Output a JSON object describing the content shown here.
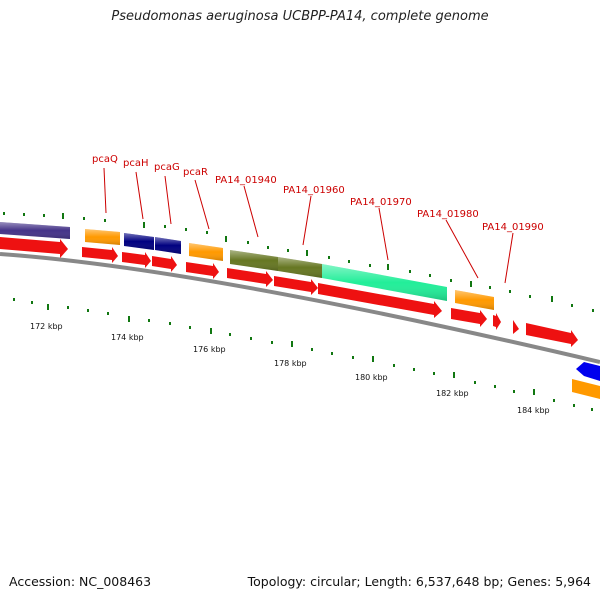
{
  "title": "Pseudomonas aeruginosa UCBPP-PA14, complete genome",
  "footer": {
    "accession": "Accession: NC_008463",
    "summary": "Topology: circular; Length: 6,537,648 bp; Genes: 5,964"
  },
  "colors": {
    "cds": "#ee1111",
    "orange_feature": "#ff9900",
    "navy_feature": "#000080",
    "purple_feature": "#443388",
    "olive_feature": "#667722",
    "mint_feature": "#22ee99",
    "blue_feature": "#0000ee",
    "backbone": "#888888",
    "tick": "#117711",
    "label": "#cc0000"
  },
  "axis_labels": [
    "172 kbp",
    "174 kbp",
    "176 kbp",
    "178 kbp",
    "180 kbp",
    "182 kbp",
    "184 kbp"
  ],
  "gene_labels": [
    "pcaQ",
    "pcaH",
    "pcaG",
    "pcaR",
    "PA14_01940",
    "PA14_01960",
    "PA14_01970",
    "PA14_01980",
    "PA14_01990"
  ]
}
